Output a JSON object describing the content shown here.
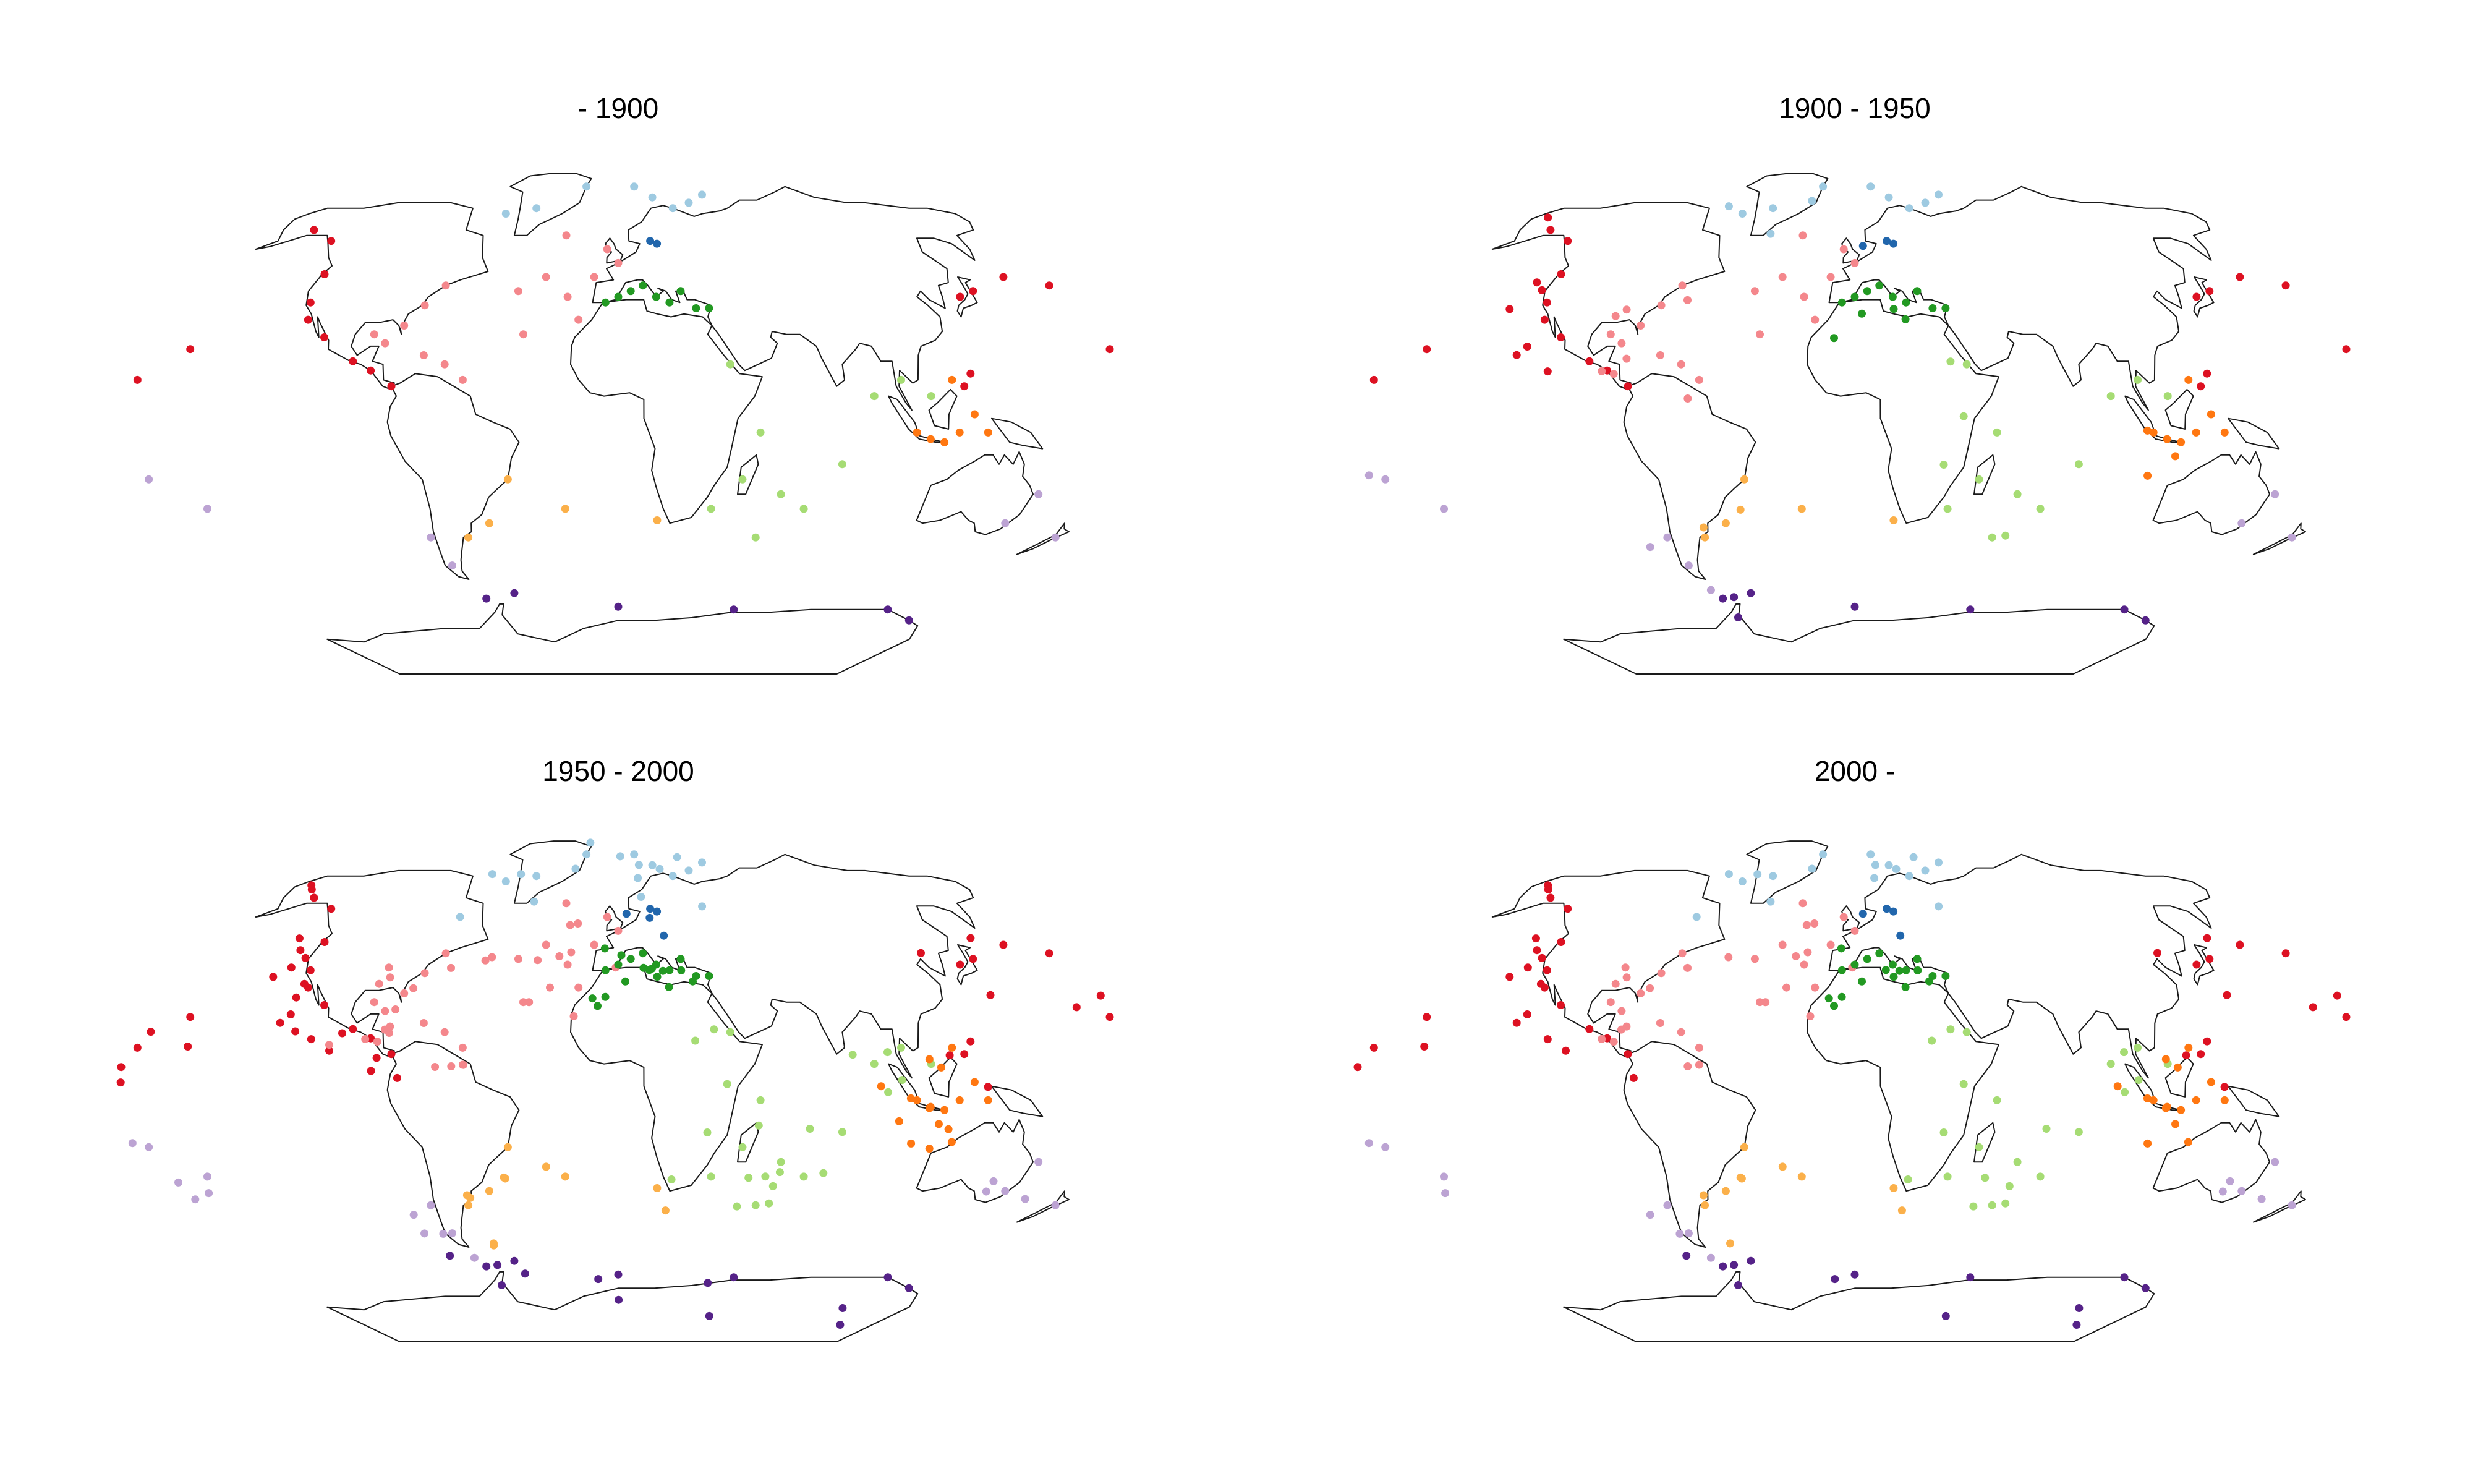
{
  "panels": [
    {
      "key": "p1900",
      "title": "- 1900"
    },
    {
      "key": "p1950",
      "title": "1900 - 1950"
    },
    {
      "key": "p2000",
      "title": "1950 - 2000"
    },
    {
      "key": "p2000plus",
      "title": "2000 -"
    }
  ],
  "colors": {
    "arctic": "#9ecae1",
    "baltic": "#2166ac",
    "north_atlantic": "#f4878c",
    "mediterranean": "#229922",
    "north_pacific": "#dd1122",
    "indo_pacific_west": "#ff7711",
    "indian_ocean": "#a6dc74",
    "south_atlantic": "#fbb04a",
    "south_pacific": "#bca3d3",
    "southern_ocean": "#552288"
  },
  "chart_data": {
    "type": "scatter",
    "note_units": "longitude/latitude degrees (approximate, read from map)",
    "series": [
      {
        "name": "",
        "region": "north_pacific",
        "panel": "p1900",
        "points": [
          [
            -150,
            62
          ],
          [
            -135,
            58
          ],
          [
            -123,
            46
          ],
          [
            -120,
            36
          ],
          [
            -117,
            30
          ],
          [
            -108,
            24
          ],
          [
            -95,
            16
          ],
          [
            -88,
            13
          ],
          [
            -80,
            8
          ],
          [
            -155,
            20
          ],
          [
            -170,
            10
          ],
          [
            125,
            12
          ],
          [
            122,
            8
          ],
          [
            135,
            38
          ],
          [
            142,
            40
          ],
          [
            160,
            45
          ],
          [
            175,
            42
          ],
          [
            178,
            20
          ]
        ]
      },
      {
        "name": "",
        "region": "arctic",
        "panel": "p1900",
        "points": [
          [
            -60,
            68
          ],
          [
            -45,
            70
          ],
          [
            -20,
            78
          ],
          [
            10,
            78
          ],
          [
            20,
            74
          ],
          [
            30,
            70
          ],
          [
            40,
            72
          ],
          [
            50,
            75
          ]
        ]
      },
      {
        "name": "",
        "region": "baltic",
        "panel": "p1900",
        "points": [
          [
            15,
            58
          ],
          [
            18,
            57
          ]
        ]
      },
      {
        "name": "",
        "region": "north_atlantic",
        "panel": "p1900",
        "points": [
          [
            -70,
            42
          ],
          [
            -75,
            35
          ],
          [
            -80,
            28
          ],
          [
            -90,
            25
          ],
          [
            -85,
            22
          ],
          [
            -70,
            18
          ],
          [
            -62,
            15
          ],
          [
            -55,
            10
          ],
          [
            -40,
            40
          ],
          [
            -30,
            45
          ],
          [
            -20,
            38
          ],
          [
            -10,
            45
          ],
          [
            0,
            50
          ],
          [
            -5,
            55
          ],
          [
            -25,
            60
          ],
          [
            -15,
            30
          ],
          [
            -35,
            25
          ]
        ]
      },
      {
        "name": "",
        "region": "mediterranean",
        "panel": "p1900",
        "points": [
          [
            0,
            38
          ],
          [
            5,
            40
          ],
          [
            10,
            42
          ],
          [
            15,
            38
          ],
          [
            20,
            36
          ],
          [
            25,
            40
          ],
          [
            30,
            34
          ],
          [
            35,
            34
          ],
          [
            -5,
            36
          ]
        ]
      },
      {
        "name": "",
        "region": "indian_ocean",
        "panel": "p1900",
        "points": [
          [
            40,
            15
          ],
          [
            45,
            -20
          ],
          [
            50,
            -5
          ],
          [
            60,
            -25
          ],
          [
            70,
            -30
          ],
          [
            80,
            -15
          ],
          [
            90,
            5
          ],
          [
            100,
            10
          ],
          [
            110,
            5
          ],
          [
            35,
            -30
          ],
          [
            55,
            -40
          ]
        ]
      },
      {
        "name": "",
        "region": "indo_pacific_west",
        "panel": "p1900",
        "points": [
          [
            105,
            -5
          ],
          [
            110,
            -7
          ],
          [
            115,
            -8
          ],
          [
            120,
            -5
          ],
          [
            125,
            0
          ],
          [
            130,
            -5
          ],
          [
            118,
            10
          ]
        ]
      },
      {
        "name": "",
        "region": "south_atlantic",
        "panel": "p1900",
        "points": [
          [
            -40,
            -20
          ],
          [
            -50,
            -35
          ],
          [
            -60,
            -40
          ],
          [
            15,
            -34
          ],
          [
            -20,
            -30
          ]
        ]
      },
      {
        "name": "",
        "region": "south_pacific",
        "panel": "p1900",
        "points": [
          [
            -75,
            -40
          ],
          [
            -72,
            -50
          ],
          [
            -170,
            -20
          ],
          [
            -155,
            -30
          ],
          [
            150,
            -35
          ],
          [
            155,
            -25
          ],
          [
            175,
            -40
          ]
        ]
      },
      {
        "name": "",
        "region": "southern_ocean",
        "panel": "p1900",
        "points": [
          [
            -65,
            -62
          ],
          [
            -50,
            -60
          ],
          [
            0,
            -65
          ],
          [
            60,
            -66
          ],
          [
            140,
            -66
          ],
          [
            160,
            -70
          ]
        ]
      }
    ]
  }
}
